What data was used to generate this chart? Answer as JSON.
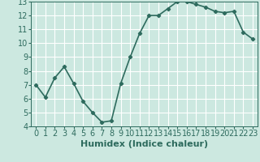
{
  "x": [
    0,
    1,
    2,
    3,
    4,
    5,
    6,
    7,
    8,
    9,
    10,
    11,
    12,
    13,
    14,
    15,
    16,
    17,
    18,
    19,
    20,
    21,
    22,
    23
  ],
  "y": [
    7.0,
    6.1,
    7.5,
    8.3,
    7.1,
    5.8,
    5.0,
    4.3,
    4.4,
    7.1,
    9.0,
    10.7,
    12.0,
    12.0,
    12.5,
    13.0,
    13.0,
    12.8,
    12.6,
    12.3,
    12.2,
    12.3,
    10.8,
    10.3
  ],
  "xlabel": "Humidex (Indice chaleur)",
  "xlim": [
    -0.5,
    23.5
  ],
  "ylim": [
    4,
    13
  ],
  "yticks": [
    4,
    5,
    6,
    7,
    8,
    9,
    10,
    11,
    12,
    13
  ],
  "xticks": [
    0,
    1,
    2,
    3,
    4,
    5,
    6,
    7,
    8,
    9,
    10,
    11,
    12,
    13,
    14,
    15,
    16,
    17,
    18,
    19,
    20,
    21,
    22,
    23
  ],
  "line_color": "#2e6b5e",
  "marker": "D",
  "marker_size": 2.2,
  "bg_color": "#cce8e0",
  "grid_color": "#ffffff",
  "xlabel_fontsize": 8,
  "tick_fontsize": 7,
  "line_width": 1.2
}
